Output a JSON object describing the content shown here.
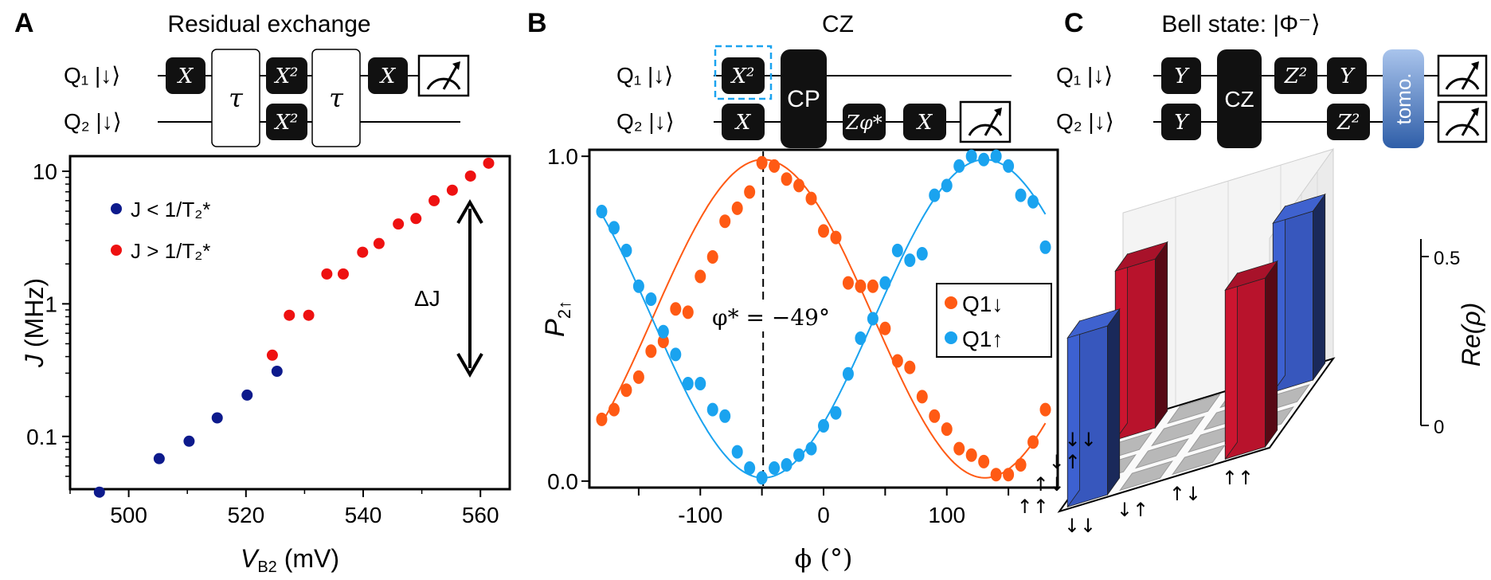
{
  "panels": {
    "A": {
      "letter": "A",
      "title": "Residual exchange",
      "circuit": {
        "q1_label": "Q₁ |↓⟩",
        "q2_label": "Q₂ |↓⟩",
        "gates_q1": [
          "X",
          "X²",
          "X"
        ],
        "gates_q2": [
          "X²"
        ],
        "tau": "τ"
      },
      "arrow_label": "ΔJ"
    },
    "B": {
      "letter": "B",
      "title": "CZ",
      "circuit": {
        "q1_label": "Q₁ |↓⟩",
        "q2_label": "Q₂ |↓⟩",
        "gate_q1": "X²",
        "gates_q2": [
          "X",
          "X"
        ],
        "cp": "CP",
        "zphi": "Zφ*"
      },
      "annotation": "φ* = −49°"
    },
    "C": {
      "letter": "C",
      "title": "Bell state: |Φ⁻⟩",
      "circuit": {
        "q1_label": "Q₁ |↓⟩",
        "q2_label": "Q₂ |↓⟩",
        "gates_q1": [
          "Y",
          "Z²",
          "Y"
        ],
        "gates_q2": [
          "Y",
          "Z²"
        ],
        "cz": "CZ",
        "tomo": "tomo."
      },
      "zlabel": "Re(ρ)",
      "zticks": [
        "0",
        "0.5"
      ],
      "basis_x": [
        "↓↓",
        "↓↑",
        "↑↓",
        "↑↑"
      ],
      "basis_y": [
        "↓↓",
        "↓↑",
        "↑↓",
        "↑↑"
      ]
    }
  },
  "colors": {
    "navy": "#0d1a8c",
    "red": "#ee1111",
    "orange": "#ff5a14",
    "cyan": "#1aa3ef",
    "gate": "#111111",
    "tomo": "#3f6fbf"
  },
  "chart_data": [
    {
      "type": "scatter",
      "xlabel": "V_B2 (mV)",
      "ylabel": "J (MHz)",
      "yscale": "log",
      "xlim": [
        490,
        565
      ],
      "ylim": [
        0.04,
        13
      ],
      "xticks": [
        "500",
        "520",
        "540",
        "560"
      ],
      "yticks": [
        "0.1",
        "1",
        "10"
      ],
      "legend_position": "top-left",
      "series": [
        {
          "name": "J < 1/T₂*",
          "color": "#0d1a8c",
          "x": [
            495.0,
            505.2,
            510.3,
            515.1,
            520.2,
            525.3
          ],
          "y": [
            0.038,
            0.068,
            0.092,
            0.138,
            0.205,
            0.31
          ]
        },
        {
          "name": "J > 1/T₂*",
          "color": "#ee1111",
          "x": [
            524.5,
            527.4,
            530.7,
            533.8,
            536.6,
            539.9,
            542.7,
            546.0,
            549.0,
            552.1,
            555.2,
            558.3,
            561.4
          ],
          "y": [
            0.41,
            0.82,
            0.82,
            1.68,
            1.68,
            2.45,
            2.85,
            4.0,
            4.4,
            6.0,
            7.2,
            9.2,
            11.5
          ]
        }
      ]
    },
    {
      "type": "scatter",
      "xlabel": "ϕ (°)",
      "ylabel": "P₂↑",
      "xlim": [
        -190,
        190
      ],
      "ylim": [
        -0.02,
        1.02
      ],
      "xticks": [
        "-100",
        "0",
        "100"
      ],
      "yticks": [
        "0.0",
        "1.0"
      ],
      "legend_position": "right",
      "series": [
        {
          "name": "Q1↓",
          "color": "#ff5a14",
          "x": [
            -180,
            -170,
            -160,
            -150,
            -140,
            -130,
            -120,
            -110,
            -100,
            -90,
            -80,
            -70,
            -60,
            -50,
            -40,
            -30,
            -20,
            -10,
            0,
            10,
            20,
            30,
            40,
            50,
            60,
            70,
            80,
            90,
            100,
            110,
            120,
            130,
            140,
            150,
            160,
            170,
            180
          ],
          "y": [
            0.19,
            0.22,
            0.28,
            0.32,
            0.4,
            0.43,
            0.53,
            0.52,
            0.63,
            0.69,
            0.8,
            0.84,
            0.89,
            0.98,
            0.97,
            0.93,
            0.91,
            0.87,
            0.77,
            0.75,
            0.61,
            0.6,
            0.6,
            0.47,
            0.37,
            0.35,
            0.26,
            0.2,
            0.16,
            0.1,
            0.08,
            0.06,
            0.02,
            0.02,
            0.05,
            0.12,
            0.22
          ]
        },
        {
          "name": "Q1↑",
          "color": "#1aa3ef",
          "x": [
            -180,
            -170,
            -160,
            -150,
            -140,
            -130,
            -120,
            -110,
            -100,
            -90,
            -80,
            -70,
            -60,
            -50,
            -40,
            -30,
            -20,
            -10,
            0,
            10,
            20,
            30,
            40,
            50,
            60,
            70,
            80,
            90,
            100,
            110,
            120,
            130,
            140,
            150,
            160,
            170,
            180
          ],
          "y": [
            0.83,
            0.78,
            0.71,
            0.6,
            0.56,
            0.46,
            0.39,
            0.3,
            0.3,
            0.22,
            0.2,
            0.09,
            0.04,
            0.01,
            0.04,
            0.05,
            0.08,
            0.1,
            0.17,
            0.21,
            0.33,
            0.44,
            0.5,
            0.61,
            0.71,
            0.68,
            0.7,
            0.88,
            0.91,
            0.97,
            1.0,
            0.99,
            1.0,
            0.97,
            0.88,
            0.86,
            0.72
          ]
        }
      ]
    },
    {
      "type": "bar3d",
      "zlabel": "Re(ρ)",
      "zlim": [
        0,
        0.5
      ],
      "rows": [
        "↓↓",
        "↓↑",
        "↑↓",
        "↑↑"
      ],
      "cols": [
        "↓↓",
        "↓↑",
        "↑↓",
        "↑↑"
      ],
      "values": [
        [
          0.5,
          0,
          0,
          -0.5
        ],
        [
          0,
          0,
          0,
          0
        ],
        [
          0,
          0,
          0,
          0
        ],
        [
          -0.5,
          0,
          0,
          0.5
        ]
      ]
    }
  ]
}
